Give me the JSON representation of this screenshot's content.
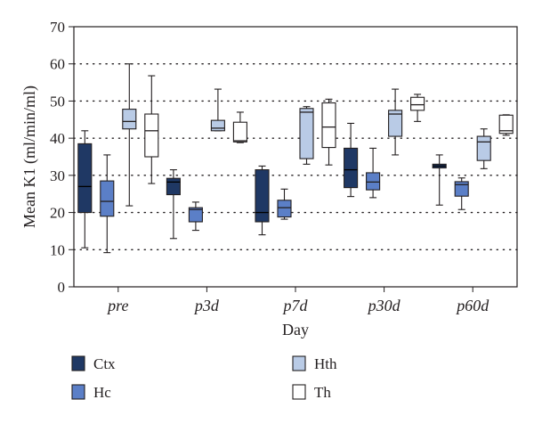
{
  "chart_data": {
    "type": "box",
    "title": "",
    "xlabel": "Day",
    "ylabel": "Mean K1 (ml/min/ml)",
    "ylim": [
      0,
      70
    ],
    "yticks": [
      0,
      10,
      20,
      30,
      40,
      50,
      60,
      70
    ],
    "grid": "horizontal dotted",
    "legend_position": "bottom",
    "categories": [
      "pre",
      "p3d",
      "p7d",
      "p30d",
      "p60d"
    ],
    "series": [
      {
        "name": "Ctx",
        "color": "#1f3864",
        "boxes": [
          {
            "min": 10.5,
            "q1": 20,
            "median": 27,
            "q3": 38.5,
            "max": 42
          },
          {
            "min": 13,
            "q1": 24.8,
            "median": 28.2,
            "q3": 29.2,
            "max": 31.5
          },
          {
            "min": 14,
            "q1": 17.5,
            "median": 20,
            "q3": 31.5,
            "max": 32.5
          },
          {
            "min": 24.3,
            "q1": 26.7,
            "median": 31.5,
            "q3": 37.3,
            "max": 44
          },
          {
            "min": 22,
            "q1": 32,
            "median": 32.5,
            "q3": 33,
            "max": 35.5
          }
        ]
      },
      {
        "name": "Hc",
        "color": "#5b7fc7",
        "boxes": [
          {
            "min": 9.2,
            "q1": 19,
            "median": 23,
            "q3": 28.5,
            "max": 35.5
          },
          {
            "min": 15.2,
            "q1": 17.5,
            "median": 20.8,
            "q3": 21.3,
            "max": 22.8
          },
          {
            "min": 18.2,
            "q1": 18.8,
            "median": 21.3,
            "q3": 23.3,
            "max": 26.3
          },
          {
            "min": 24,
            "q1": 26.1,
            "median": 28.2,
            "q3": 30.7,
            "max": 37.3
          },
          {
            "min": 20.8,
            "q1": 24.4,
            "median": 27.5,
            "q3": 28.3,
            "max": 29.3
          }
        ]
      },
      {
        "name": "Hth",
        "color": "#b9cbe6",
        "boxes": [
          {
            "min": 21.8,
            "q1": 42.5,
            "median": 44.5,
            "q3": 47.8,
            "max": 60
          },
          {
            "min": 42,
            "q1": 42,
            "median": 42.7,
            "q3": 44.8,
            "max": 53.2
          },
          {
            "min": 33,
            "q1": 34.5,
            "median": 47,
            "q3": 48,
            "max": 48.5
          },
          {
            "min": 35.5,
            "q1": 40.5,
            "median": 46.5,
            "q3": 47.5,
            "max": 53.2
          },
          {
            "min": 31.8,
            "q1": 34,
            "median": 39,
            "q3": 40.5,
            "max": 42.5
          }
        ]
      },
      {
        "name": "Th",
        "color": "#ffffff",
        "boxes": [
          {
            "min": 27.8,
            "q1": 35,
            "median": 42,
            "q3": 46.5,
            "max": 56.8
          },
          {
            "min": 38.8,
            "q1": 39,
            "median": 39.3,
            "q3": 44.3,
            "max": 47
          },
          {
            "min": 32.8,
            "q1": 37.5,
            "median": 43,
            "q3": 49.5,
            "max": 50.5
          },
          {
            "min": 44.5,
            "q1": 47.5,
            "median": 49,
            "q3": 51,
            "max": 51.8
          },
          {
            "min": 40.8,
            "q1": 41.3,
            "median": 42,
            "q3": 46.2,
            "max": 46.3
          }
        ]
      }
    ]
  }
}
